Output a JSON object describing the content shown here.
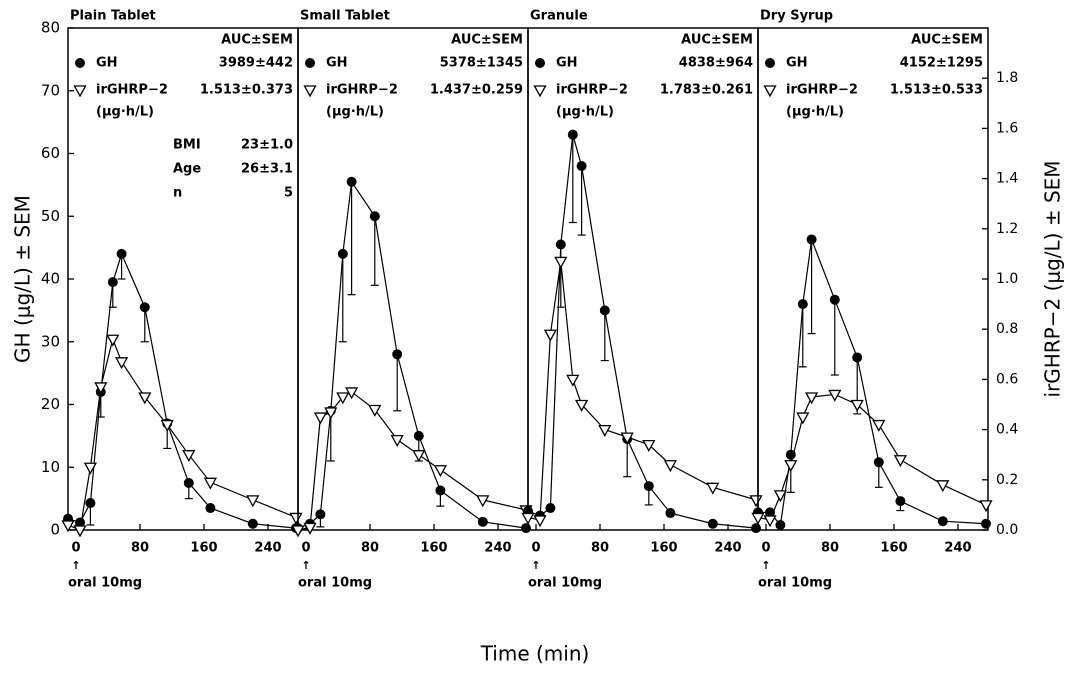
{
  "figure": {
    "xlabel": "Time (min)"
  },
  "chart_data": [
    {
      "type": "line",
      "title": "Plain Tablet",
      "ylabel": "GH (μg/L) ± SEM",
      "auc_header": "AUC±SEM",
      "auc_unit": "(μg·h/L)",
      "dose_label": "oral 10mg",
      "x": [
        -10,
        5,
        18,
        31,
        46,
        57,
        86,
        114,
        141,
        168,
        221,
        275
      ],
      "xlim": [
        -10,
        277.5
      ],
      "xticks": [
        0,
        80,
        160,
        240
      ],
      "ylim": [
        0,
        80
      ],
      "yticks": [
        0,
        10,
        20,
        30,
        40,
        50,
        60,
        70,
        80
      ],
      "y2lim": [
        0,
        2.0
      ],
      "series": [
        {
          "name": "GH",
          "color": "#000000",
          "marker": "circle",
          "auc": "3989±442",
          "values": [
            1.8,
            1.2,
            4.3,
            22,
            39.5,
            44,
            35.5,
            17,
            7.5,
            3.5,
            1.0,
            0.3
          ],
          "errors": [
            null,
            null,
            3.5,
            4,
            4,
            4,
            5.5,
            4,
            2.5,
            null,
            null,
            null
          ]
        },
        {
          "name": "irGHRP−2",
          "color": "#000000",
          "marker": "triangle",
          "axis": "y2",
          "auc": "1.513±0.373",
          "values": [
            0.02,
            0.0,
            0.25,
            0.57,
            0.76,
            0.67,
            0.53,
            0.42,
            0.3,
            0.19,
            0.12,
            0.05
          ]
        }
      ],
      "stats": [
        {
          "label": "BMI",
          "value": "23±1.0"
        },
        {
          "label": "Age",
          "value": "26±3.1"
        },
        {
          "label": "n",
          "value": "5"
        }
      ]
    },
    {
      "type": "line",
      "title": "Small Tablet",
      "auc_header": "AUC±SEM",
      "auc_unit": "(μg·h/L)",
      "dose_label": "oral 10mg",
      "x": [
        -10,
        5,
        18,
        31,
        46,
        57,
        86,
        114,
        141,
        168,
        221,
        275
      ],
      "xlim": [
        -10,
        277.5
      ],
      "xticks": [
        0,
        80,
        160,
        240
      ],
      "ylim": [
        0,
        80
      ],
      "y2lim": [
        0,
        2.0
      ],
      "series": [
        {
          "name": "GH",
          "color": "#000000",
          "marker": "circle",
          "auc": "5378±1345",
          "values": [
            0.3,
            1.0,
            2.5,
            19,
            44,
            55.5,
            50,
            28,
            15,
            6.3,
            1.3,
            0.3
          ],
          "errors": [
            null,
            null,
            2,
            8,
            14,
            18,
            11,
            9,
            4,
            2.5,
            null,
            null
          ]
        },
        {
          "name": "irGHRP−2",
          "color": "#000000",
          "marker": "triangle",
          "axis": "y2",
          "auc": "1.437±0.259",
          "values": [
            0.0,
            0.01,
            0.45,
            0.47,
            0.53,
            0.55,
            0.48,
            0.36,
            0.3,
            0.24,
            0.12,
            0.08
          ]
        }
      ]
    },
    {
      "type": "line",
      "title": "Granule",
      "auc_header": "AUC±SEM",
      "auc_unit": "(μg·h/L)",
      "dose_label": "oral 10mg",
      "x": [
        -10,
        5,
        18,
        31,
        46,
        57,
        86,
        114,
        141,
        168,
        221,
        275
      ],
      "xlim": [
        -10,
        277.5
      ],
      "xticks": [
        0,
        80,
        160,
        240
      ],
      "ylim": [
        0,
        80
      ],
      "y2lim": [
        0,
        2.0
      ],
      "series": [
        {
          "name": "GH",
          "color": "#000000",
          "marker": "circle",
          "auc": "4838±964",
          "values": [
            3.0,
            2.3,
            3.5,
            45.5,
            63,
            58,
            35,
            14.5,
            7,
            2.7,
            1.0,
            0.3
          ],
          "errors": [
            null,
            null,
            null,
            10,
            14,
            11,
            8,
            6,
            3,
            null,
            null,
            null
          ]
        },
        {
          "name": "irGHRP−2",
          "color": "#000000",
          "marker": "triangle",
          "axis": "y2",
          "auc": "1.783±0.261",
          "values": [
            0.05,
            0.04,
            0.78,
            1.07,
            0.6,
            0.5,
            0.4,
            0.37,
            0.34,
            0.26,
            0.17,
            0.12
          ]
        }
      ]
    },
    {
      "type": "line",
      "title": "Dry Syrup",
      "y2label": "irGHRP−2 (μg/L) ± SEM",
      "auc_header": "AUC±SEM",
      "auc_unit": "(μg·h/L)",
      "dose_label": "oral 10mg",
      "x": [
        -10,
        5,
        18,
        31,
        46,
        57,
        86,
        114,
        141,
        168,
        221,
        275
      ],
      "xlim": [
        -10,
        277.5
      ],
      "xticks": [
        0,
        80,
        160,
        240
      ],
      "ylim": [
        0,
        80
      ],
      "y2lim": [
        0,
        2.0
      ],
      "y2ticks": [
        {
          "value": 0,
          "label": "0.0"
        },
        0.2,
        0.4,
        0.6,
        0.8,
        {
          "value": 1.0,
          "label": "1.0"
        },
        1.2,
        1.4,
        1.6,
        1.8
      ],
      "series": [
        {
          "name": "GH",
          "color": "#000000",
          "marker": "circle",
          "auc": "4152±1295",
          "values": [
            2.8,
            2.8,
            0.8,
            12,
            36,
            46.3,
            36.7,
            27.5,
            10.8,
            4.6,
            1.4,
            1.0
          ],
          "errors": [
            null,
            null,
            null,
            6,
            10,
            15,
            12,
            9,
            4,
            1.5,
            null,
            null
          ]
        },
        {
          "name": "irGHRP−2",
          "color": "#000000",
          "marker": "triangle",
          "axis": "y2",
          "auc": "1.513±0.533",
          "values": [
            0.05,
            0.04,
            0.14,
            0.26,
            0.45,
            0.53,
            0.54,
            0.5,
            0.42,
            0.28,
            0.18,
            0.1
          ]
        }
      ]
    }
  ]
}
